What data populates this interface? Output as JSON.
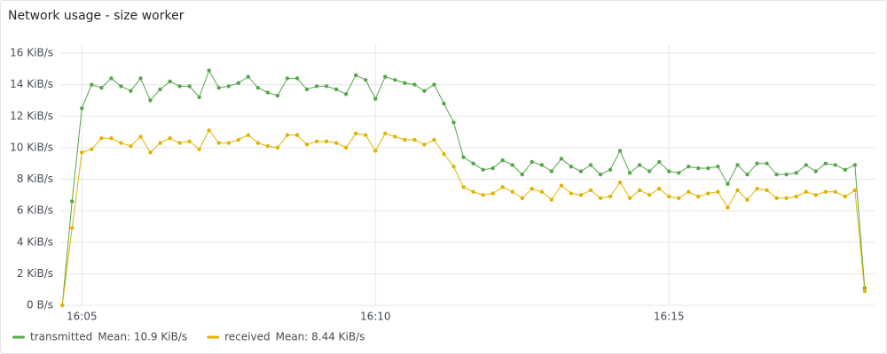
{
  "chart_data": {
    "type": "line",
    "title": "Network usage - size worker",
    "x": [
      280,
      290,
      300,
      310,
      320,
      330,
      340,
      350,
      360,
      370,
      380,
      390,
      400,
      410,
      420,
      430,
      440,
      450,
      460,
      470,
      480,
      490,
      500,
      510,
      520,
      530,
      540,
      550,
      560,
      570,
      580,
      590,
      600,
      610,
      620,
      630,
      640,
      650,
      660,
      670,
      680,
      690,
      700,
      710,
      720,
      730,
      740,
      750,
      760,
      770,
      780,
      790,
      800,
      810,
      820,
      830,
      840,
      850,
      860,
      870,
      880,
      890,
      900,
      910,
      920,
      930,
      940,
      950,
      960,
      970,
      980,
      990,
      1000,
      1010,
      1020,
      1030,
      1040,
      1050,
      1060,
      1070,
      1080,
      1090,
      1100
    ],
    "xlim": [
      278,
      1111
    ],
    "xticks": [
      {
        "value": 300,
        "label": "16:05"
      },
      {
        "value": 600,
        "label": "16:10"
      },
      {
        "value": 900,
        "label": "16:15"
      }
    ],
    "ylim": [
      0,
      16
    ],
    "yticks": [
      {
        "value": 0,
        "label": "0 B/s"
      },
      {
        "value": 2,
        "label": "2 KiB/s"
      },
      {
        "value": 4,
        "label": "4 KiB/s"
      },
      {
        "value": 6,
        "label": "6 KiB/s"
      },
      {
        "value": 8,
        "label": "8 KiB/s"
      },
      {
        "value": 10,
        "label": "10 KiB/s"
      },
      {
        "value": 12,
        "label": "12 KiB/s"
      },
      {
        "value": 14,
        "label": "14 KiB/s"
      },
      {
        "value": 16,
        "label": "16 KiB/s"
      }
    ],
    "grid": true,
    "legend": "bottom",
    "series": [
      {
        "name": "transmitted",
        "color": "#56a64b",
        "mean_label": "Mean: 10.9 KiB/s",
        "values": [
          0,
          6.6,
          12.5,
          14.0,
          13.8,
          14.4,
          13.9,
          13.6,
          14.4,
          13.0,
          13.7,
          14.2,
          13.9,
          13.9,
          13.2,
          14.9,
          13.8,
          13.9,
          14.1,
          14.5,
          13.8,
          13.5,
          13.3,
          14.4,
          14.4,
          13.7,
          13.9,
          13.9,
          13.7,
          13.4,
          14.6,
          14.3,
          13.1,
          14.5,
          14.3,
          14.1,
          14.0,
          13.6,
          14.0,
          12.8,
          11.6,
          9.4,
          9.0,
          8.6,
          8.7,
          9.2,
          8.9,
          8.3,
          9.1,
          8.9,
          8.5,
          9.3,
          8.8,
          8.5,
          8.9,
          8.3,
          8.6,
          9.8,
          8.4,
          8.9,
          8.5,
          9.1,
          8.5,
          8.4,
          8.8,
          8.7,
          8.7,
          8.8,
          7.7,
          8.9,
          8.3,
          9.0,
          9.0,
          8.3,
          8.3,
          8.4,
          8.9,
          8.5,
          9.0,
          8.9,
          8.6,
          8.9,
          1.1
        ]
      },
      {
        "name": "received",
        "color": "#e0b400",
        "mean_label": "Mean: 8.44 KiB/s",
        "values": [
          0,
          4.9,
          9.7,
          9.9,
          10.6,
          10.6,
          10.3,
          10.1,
          10.7,
          9.7,
          10.3,
          10.6,
          10.3,
          10.4,
          9.9,
          11.1,
          10.3,
          10.3,
          10.5,
          10.8,
          10.3,
          10.1,
          10.0,
          10.8,
          10.8,
          10.2,
          10.4,
          10.4,
          10.3,
          10.0,
          10.9,
          10.8,
          9.8,
          10.9,
          10.7,
          10.5,
          10.5,
          10.2,
          10.5,
          9.6,
          8.8,
          7.5,
          7.2,
          7.0,
          7.1,
          7.5,
          7.2,
          6.8,
          7.4,
          7.2,
          6.7,
          7.6,
          7.1,
          7.0,
          7.3,
          6.8,
          6.9,
          7.8,
          6.8,
          7.3,
          7.0,
          7.4,
          6.9,
          6.8,
          7.2,
          6.9,
          7.1,
          7.2,
          6.2,
          7.3,
          6.7,
          7.4,
          7.3,
          6.8,
          6.8,
          6.9,
          7.2,
          7.0,
          7.2,
          7.2,
          6.9,
          7.3,
          0.9
        ]
      }
    ]
  }
}
